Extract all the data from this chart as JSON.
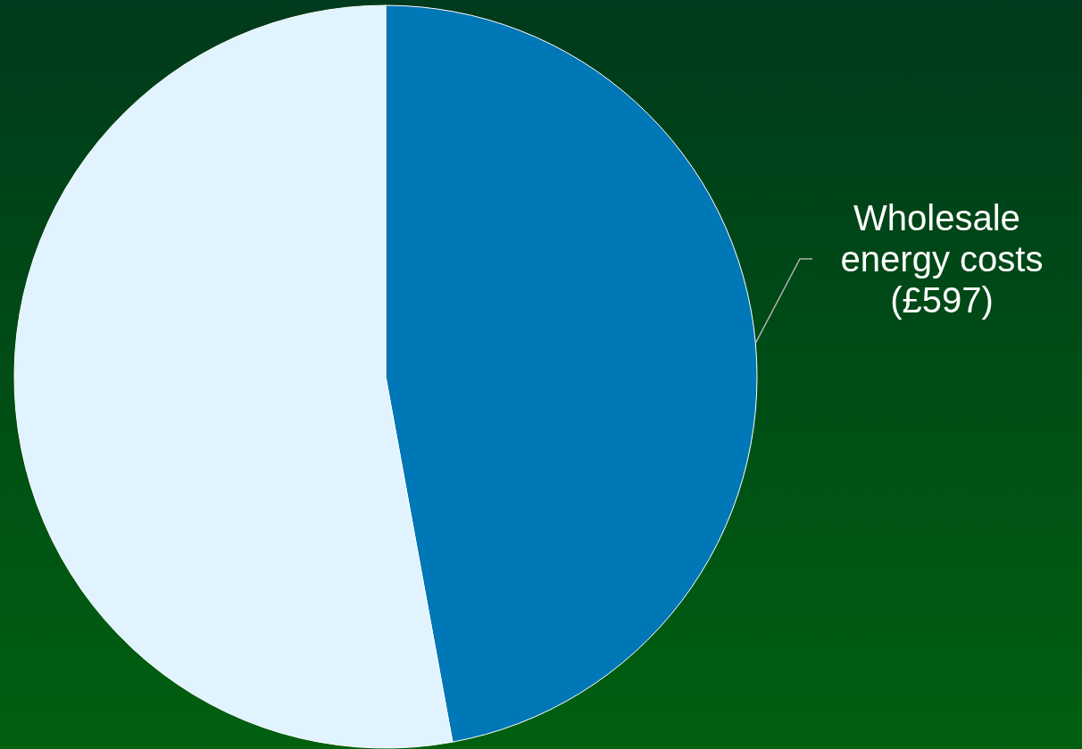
{
  "chart_data": {
    "type": "pie",
    "categories": [
      "Wholesale energy costs",
      null
    ],
    "values": [
      597,
      670
    ],
    "value_labels": [
      "(£597)",
      null
    ],
    "colors": [
      "#0077b6",
      "#e0f3fe"
    ]
  }
}
